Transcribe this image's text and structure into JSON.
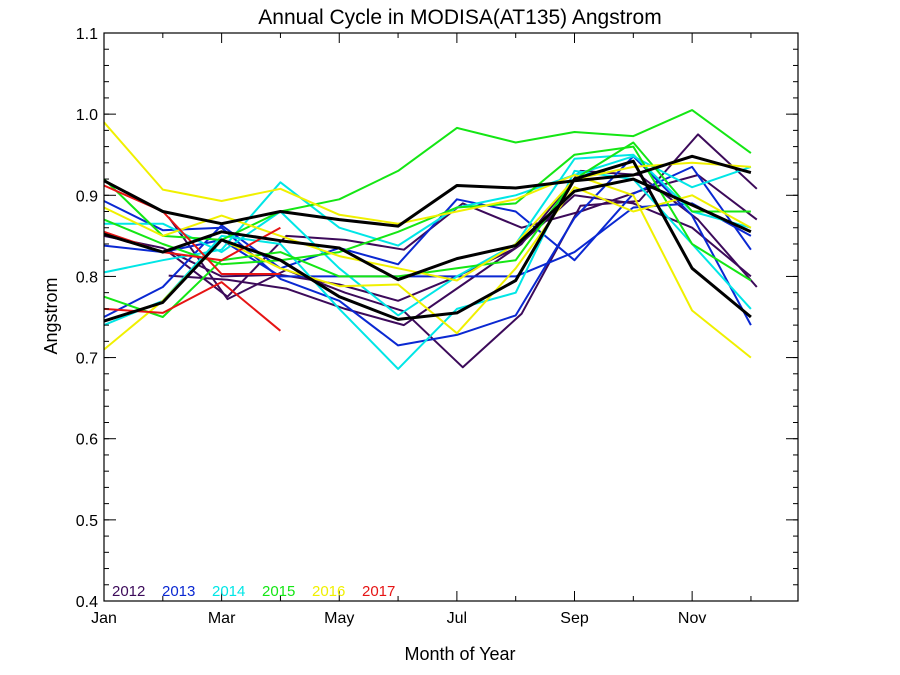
{
  "chart_data": {
    "type": "line",
    "title": "Annual Cycle in MODISA(AT135) Angstrom",
    "xlabel": "Month of Year",
    "ylabel": "Angstrom",
    "xlim": [
      1,
      12.8
    ],
    "ylim": [
      0.4,
      1.1
    ],
    "x_ticks": [
      {
        "value": 1,
        "label": "Jan"
      },
      {
        "value": 3,
        "label": "Mar"
      },
      {
        "value": 5,
        "label": "May"
      },
      {
        "value": 7,
        "label": "Jul"
      },
      {
        "value": 9,
        "label": "Sep"
      },
      {
        "value": 11,
        "label": "Nov"
      }
    ],
    "y_ticks": [
      {
        "value": 0.4,
        "label": "0.4"
      },
      {
        "value": 0.5,
        "label": "0.5"
      },
      {
        "value": 0.6,
        "label": "0.6"
      },
      {
        "value": 0.7,
        "label": "0.7"
      },
      {
        "value": 0.8,
        "label": "0.8"
      },
      {
        "value": 0.9,
        "label": "0.9"
      },
      {
        "value": 1.0,
        "label": "1.0"
      },
      {
        "value": 1.1,
        "label": "1.1"
      }
    ],
    "legend": [
      {
        "label": "2012",
        "color": "#3c0a5a"
      },
      {
        "label": "2013",
        "color": "#0a28d2"
      },
      {
        "label": "2014",
        "color": "#00e6e6"
      },
      {
        "label": "2015",
        "color": "#14e614"
      },
      {
        "label": "2016",
        "color": "#f0f000"
      },
      {
        "label": "2017",
        "color": "#e61414"
      }
    ],
    "series": [
      {
        "group": "2012",
        "color": "#3c0a5a",
        "width": 2,
        "x": [
          2.1,
          3.1,
          4.1,
          5.1,
          6.1,
          7.1,
          8.1,
          9.1,
          10.1,
          11.1,
          12.1
        ],
        "y": [
          0.873,
          0.772,
          0.808,
          0.78,
          0.757,
          0.688,
          0.754,
          0.887,
          0.893,
          0.975,
          0.908
        ]
      },
      {
        "group": "2012",
        "color": "#3c0a5a",
        "width": 2,
        "x": [
          2.1,
          3.1,
          4.1,
          5.1,
          6.1,
          7.1,
          8.1,
          9.1,
          10.1,
          11.1,
          12.1
        ],
        "y": [
          0.801,
          0.796,
          0.785,
          0.76,
          0.74,
          0.79,
          0.84,
          0.93,
          0.925,
          0.87,
          0.787
        ]
      },
      {
        "group": "2012",
        "color": "#3c0a5a",
        "width": 2,
        "x": [
          2.1,
          3.1,
          4.1,
          5.1,
          6.1,
          7.1,
          8.1,
          9.1,
          10.1,
          11.1,
          12.1
        ],
        "y": [
          0.83,
          0.775,
          0.85,
          0.845,
          0.833,
          0.89,
          0.86,
          0.88,
          0.905,
          0.925,
          0.87
        ]
      },
      {
        "group": "2012",
        "color": "#3c0a5a",
        "width": 2,
        "x": [
          1,
          2,
          3,
          4,
          5,
          6,
          7,
          8,
          9,
          10,
          11,
          12
        ],
        "y": [
          0.85,
          0.835,
          0.8,
          0.802,
          0.79,
          0.77,
          0.8,
          0.835,
          0.9,
          0.89,
          0.86,
          0.8
        ]
      },
      {
        "group": "2013",
        "color": "#0a28d2",
        "width": 2,
        "x": [
          1,
          2,
          3,
          4,
          5,
          6,
          7,
          8,
          9,
          10,
          11,
          12
        ],
        "y": [
          0.893,
          0.857,
          0.86,
          0.797,
          0.77,
          0.715,
          0.728,
          0.752,
          0.872,
          0.948,
          0.875,
          0.74
        ]
      },
      {
        "group": "2013",
        "color": "#0a28d2",
        "width": 2,
        "x": [
          1,
          2,
          3,
          4,
          5,
          6,
          7,
          8,
          9,
          10,
          11,
          12
        ],
        "y": [
          0.75,
          0.787,
          0.863,
          0.81,
          0.835,
          0.815,
          0.895,
          0.88,
          0.82,
          0.902,
          0.935,
          0.833
        ]
      },
      {
        "group": "2013",
        "color": "#0a28d2",
        "width": 2,
        "x": [
          1,
          2,
          3,
          4,
          5,
          6,
          7,
          8,
          9,
          10,
          11,
          12
        ],
        "y": [
          0.838,
          0.83,
          0.845,
          0.8,
          0.8,
          0.8,
          0.8,
          0.8,
          0.83,
          0.885,
          0.89,
          0.85
        ]
      },
      {
        "group": "2014",
        "color": "#00e6e6",
        "width": 2,
        "x": [
          1,
          2,
          3,
          4,
          5,
          6,
          7,
          8,
          9,
          10,
          11,
          12
        ],
        "y": [
          0.805,
          0.82,
          0.833,
          0.916,
          0.86,
          0.838,
          0.885,
          0.9,
          0.925,
          0.948,
          0.91,
          0.935
        ]
      },
      {
        "group": "2014",
        "color": "#00e6e6",
        "width": 2,
        "x": [
          1,
          2,
          3,
          4,
          5,
          6,
          7,
          8,
          9,
          10,
          11,
          12
        ],
        "y": [
          0.865,
          0.865,
          0.83,
          0.88,
          0.81,
          0.752,
          0.8,
          0.84,
          0.945,
          0.95,
          0.88,
          0.86
        ]
      },
      {
        "group": "2014",
        "color": "#00e6e6",
        "width": 2,
        "x": [
          1,
          2,
          3,
          4,
          5,
          6,
          7,
          8,
          9,
          10,
          11,
          12
        ],
        "y": [
          0.74,
          0.77,
          0.85,
          0.84,
          0.76,
          0.686,
          0.76,
          0.78,
          0.93,
          0.92,
          0.84,
          0.76
        ]
      },
      {
        "group": "2015",
        "color": "#14e614",
        "width": 2,
        "x": [
          1,
          2,
          3,
          4,
          5,
          6,
          7,
          8,
          9,
          10,
          11,
          12
        ],
        "y": [
          0.92,
          0.85,
          0.845,
          0.88,
          0.895,
          0.93,
          0.983,
          0.965,
          0.978,
          0.973,
          1.005,
          0.952
        ]
      },
      {
        "group": "2015",
        "color": "#14e614",
        "width": 2,
        "x": [
          1,
          2,
          3,
          4,
          5,
          6,
          7,
          8,
          9,
          10,
          11,
          12
        ],
        "y": [
          0.87,
          0.84,
          0.815,
          0.82,
          0.83,
          0.855,
          0.885,
          0.89,
          0.95,
          0.96,
          0.84,
          0.795
        ]
      },
      {
        "group": "2015",
        "color": "#14e614",
        "width": 2,
        "x": [
          1,
          2,
          3,
          4,
          5,
          6,
          7,
          8,
          9,
          10,
          11,
          12
        ],
        "y": [
          0.775,
          0.75,
          0.82,
          0.83,
          0.8,
          0.8,
          0.81,
          0.82,
          0.92,
          0.965,
          0.88,
          0.88
        ]
      },
      {
        "group": "2016",
        "color": "#f0f000",
        "width": 2,
        "x": [
          1,
          2,
          3,
          4,
          5,
          6,
          7,
          8,
          9,
          10,
          11,
          12
        ],
        "y": [
          0.99,
          0.907,
          0.893,
          0.908,
          0.876,
          0.865,
          0.88,
          0.895,
          0.925,
          0.9,
          0.758,
          0.7
        ]
      },
      {
        "group": "2016",
        "color": "#f0f000",
        "width": 2,
        "x": [
          1,
          2,
          3,
          4,
          5,
          6,
          7,
          8,
          9,
          10,
          11,
          12
        ],
        "y": [
          0.71,
          0.77,
          0.845,
          0.81,
          0.788,
          0.79,
          0.73,
          0.81,
          0.91,
          0.88,
          0.9,
          0.86
        ]
      },
      {
        "group": "2016",
        "color": "#f0f000",
        "width": 2,
        "x": [
          1,
          2,
          3,
          4,
          5,
          6,
          7,
          8,
          9,
          10,
          11,
          12
        ],
        "y": [
          0.885,
          0.85,
          0.875,
          0.85,
          0.825,
          0.81,
          0.795,
          0.84,
          0.92,
          0.935,
          0.94,
          0.935
        ]
      },
      {
        "group": "2017",
        "color": "#e61414",
        "width": 2,
        "x": [
          1,
          2,
          3,
          4
        ],
        "y": [
          0.912,
          0.88,
          0.803,
          0.803
        ]
      },
      {
        "group": "2017",
        "color": "#e61414",
        "width": 2,
        "x": [
          1,
          2,
          3,
          4
        ],
        "y": [
          0.76,
          0.755,
          0.793,
          0.733
        ]
      },
      {
        "group": "2017",
        "color": "#e61414",
        "width": 2,
        "x": [
          1,
          2,
          3,
          4
        ],
        "y": [
          0.855,
          0.83,
          0.82,
          0.86
        ]
      },
      {
        "group": "mean",
        "color": "#000000",
        "width": 3,
        "x": [
          1,
          2,
          3,
          4,
          5,
          6,
          7,
          8,
          9,
          10,
          11,
          12
        ],
        "y": [
          0.918,
          0.88,
          0.865,
          0.88,
          0.87,
          0.862,
          0.912,
          0.909,
          0.918,
          0.925,
          0.948,
          0.928
        ]
      },
      {
        "group": "mean",
        "color": "#000000",
        "width": 3,
        "x": [
          1,
          2,
          3,
          4,
          5,
          6,
          7,
          8,
          9,
          10,
          11,
          12
        ],
        "y": [
          0.852,
          0.83,
          0.855,
          0.844,
          0.835,
          0.796,
          0.822,
          0.838,
          0.905,
          0.92,
          0.888,
          0.855
        ]
      },
      {
        "group": "mean",
        "color": "#000000",
        "width": 3,
        "x": [
          1,
          2,
          3,
          4,
          5,
          6,
          7,
          8,
          9,
          10,
          11,
          12
        ],
        "y": [
          0.745,
          0.768,
          0.845,
          0.82,
          0.775,
          0.747,
          0.755,
          0.795,
          0.92,
          0.942,
          0.81,
          0.75
        ]
      }
    ]
  }
}
